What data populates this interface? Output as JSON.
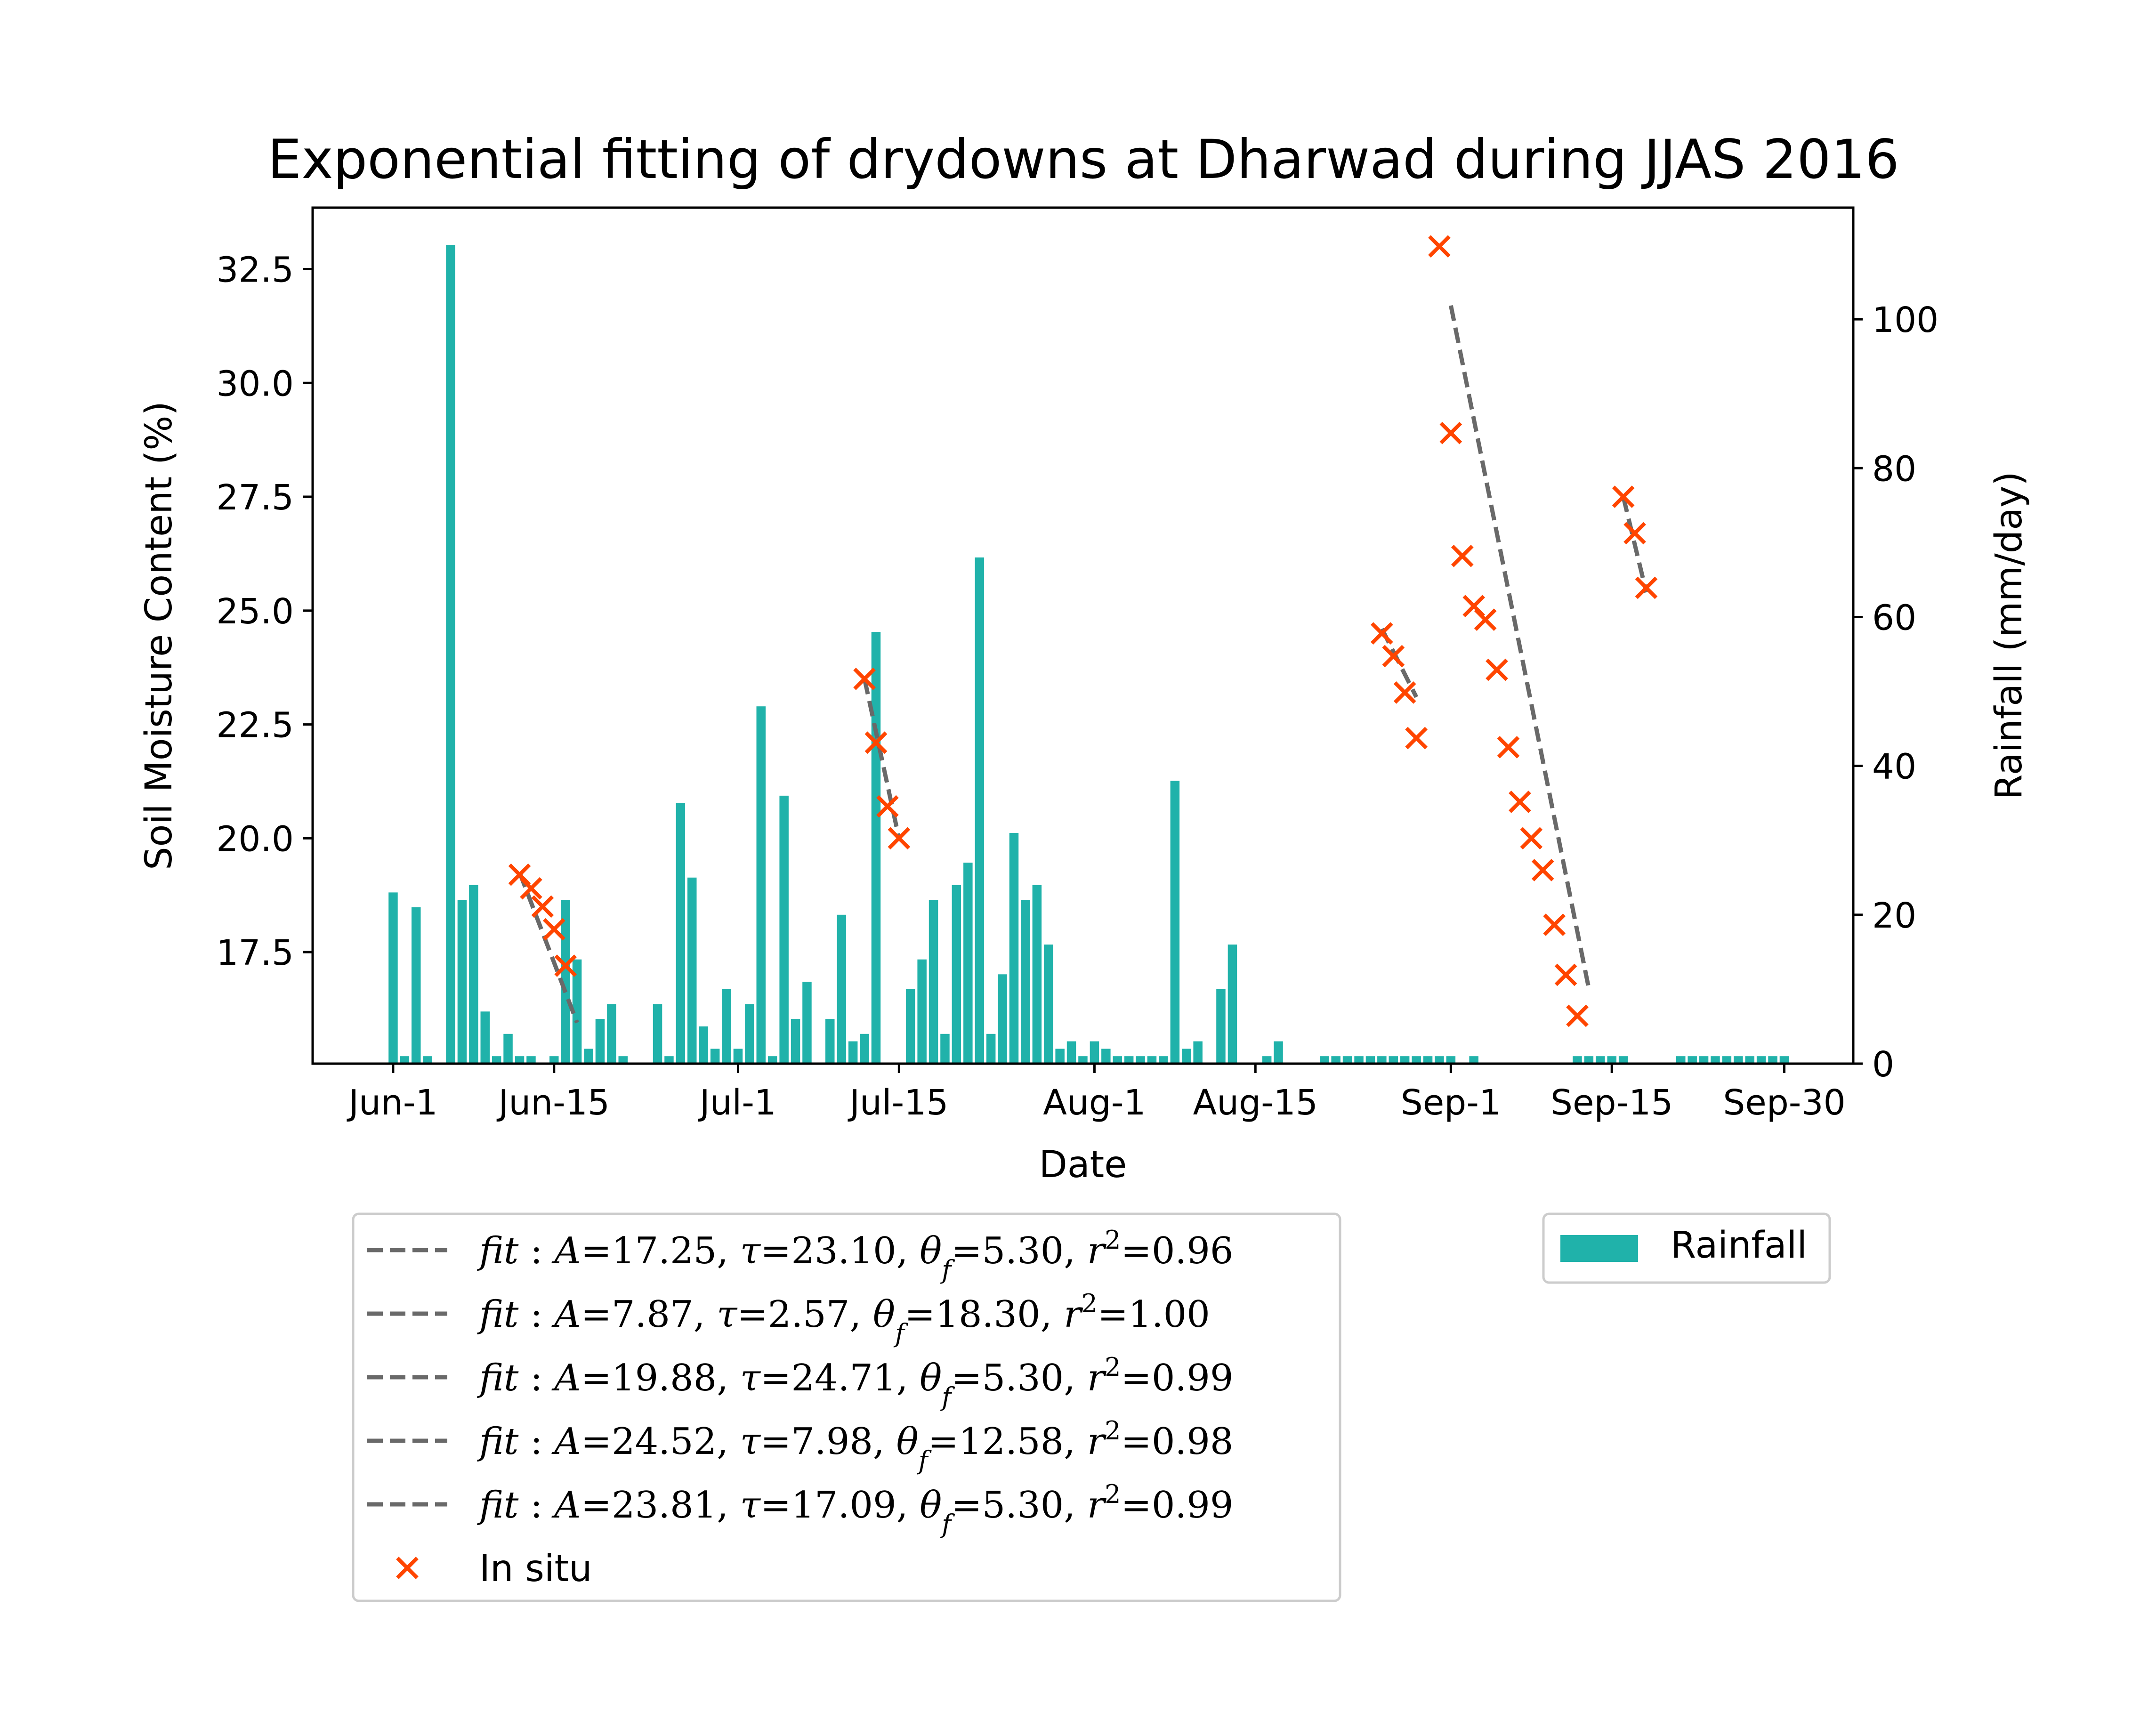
{
  "chart_data": {
    "type": "bar+scatter+line",
    "title": "Exponential fitting of drydowns at Dharwad during JJAS 2016",
    "xlabel": "Date",
    "ylabel_left": "Soil Moisture Content (%)",
    "ylabel_right": "Rainfall (mm/day)",
    "x_domain_days": [
      -7,
      127
    ],
    "x_ticks": [
      {
        "day": 0,
        "label": "Jun-1"
      },
      {
        "day": 14,
        "label": "Jun-15"
      },
      {
        "day": 30,
        "label": "Jul-1"
      },
      {
        "day": 44,
        "label": "Jul-15"
      },
      {
        "day": 61,
        "label": "Aug-1"
      },
      {
        "day": 75,
        "label": "Aug-15"
      },
      {
        "day": 92,
        "label": "Sep-1"
      },
      {
        "day": 106,
        "label": "Sep-15"
      },
      {
        "day": 121,
        "label": "Sep-30"
      }
    ],
    "ylim_left": [
      15.05,
      33.85
    ],
    "yticks_left": [
      "17.5",
      "20.0",
      "22.5",
      "25.0",
      "27.5",
      "30.0",
      "32.5"
    ],
    "ylim_right": [
      0,
      115
    ],
    "yticks_right": [
      "0",
      "20",
      "40",
      "60",
      "80",
      "100"
    ],
    "rainfall": {
      "name": "Rainfall",
      "color": "#20b2aa",
      "days": [
        0,
        1,
        2,
        3,
        5,
        6,
        7,
        8,
        9,
        10,
        11,
        12,
        14,
        15,
        16,
        17,
        18,
        19,
        20,
        23,
        24,
        25,
        26,
        27,
        28,
        29,
        30,
        31,
        32,
        33,
        34,
        35,
        36,
        38,
        39,
        40,
        41,
        42,
        45,
        46,
        47,
        48,
        49,
        50,
        51,
        52,
        53,
        54,
        55,
        56,
        57,
        58,
        59,
        60,
        61,
        62,
        63,
        64,
        65,
        66,
        67,
        68,
        69,
        70,
        72,
        73,
        76,
        77,
        81,
        82,
        83,
        84,
        85,
        86,
        87,
        88,
        89,
        90,
        91,
        92,
        94,
        103,
        104,
        105,
        106,
        107,
        112,
        113,
        114,
        115,
        116,
        117,
        118,
        119,
        120,
        121
      ],
      "values": [
        23,
        1,
        21,
        1,
        110,
        22,
        24,
        7,
        1,
        4,
        1,
        1,
        1,
        22,
        14,
        2,
        6,
        8,
        1,
        8,
        1,
        35,
        25,
        5,
        2,
        10,
        2,
        8,
        48,
        1,
        36,
        6,
        11,
        6,
        20,
        3,
        4,
        58,
        10,
        14,
        22,
        4,
        24,
        27,
        68,
        4,
        12,
        31,
        22,
        24,
        16,
        2,
        3,
        1,
        3,
        2,
        1,
        1,
        1,
        1,
        1,
        38,
        2,
        3,
        10,
        16,
        1,
        3,
        1,
        1,
        1,
        1,
        1,
        1,
        1,
        1,
        1,
        1,
        1,
        1,
        1,
        1,
        1,
        1,
        1,
        1,
        1,
        1,
        1,
        1,
        1,
        1,
        1,
        1,
        1,
        1
      ]
    },
    "fit_segments": [
      {
        "name": "fit: A=17.25, τ=23.10, θ_f=5.30, r²=0.96",
        "x": [
          11,
          16
        ],
        "y": [
          19.25,
          15.95
        ]
      },
      {
        "name": "fit: A=7.87, τ=2.57, θ_f=18.30, r²=1.00",
        "x": [
          41,
          44
        ],
        "y": [
          23.5,
          20.0
        ]
      },
      {
        "name": "fit: A=19.88, τ=24.71, θ_f=5.30, r²=0.99",
        "x": [
          86,
          89
        ],
        "y": [
          24.6,
          23.1
        ]
      },
      {
        "name": "fit: A=24.52, τ=7.98, θ_f=12.58, r²=0.98",
        "x": [
          92,
          104
        ],
        "y": [
          31.7,
          16.7
        ]
      },
      {
        "name": "fit: A=23.81, τ=17.09, θ_f=5.30, r²=0.99",
        "x": [
          107,
          109
        ],
        "y": [
          27.5,
          25.4
        ]
      }
    ],
    "in_situ": {
      "name": "In situ",
      "color": "#ff4500",
      "days": [
        11,
        12,
        13,
        14,
        15,
        41,
        42,
        43,
        44,
        86,
        87,
        88,
        89,
        91,
        92,
        93,
        94,
        95,
        96,
        97,
        98,
        99,
        100,
        101,
        102,
        103,
        107,
        108,
        109
      ],
      "values": [
        19.2,
        18.9,
        18.5,
        18.0,
        17.2,
        23.5,
        22.1,
        20.7,
        20.0,
        24.5,
        24.0,
        23.2,
        22.2,
        33.0,
        28.9,
        26.2,
        25.1,
        24.8,
        23.7,
        22.0,
        20.8,
        20.0,
        19.3,
        18.1,
        17.0,
        16.1,
        27.5,
        26.7,
        25.5
      ]
    },
    "legend_left": {
      "entries": [
        {
          "type": "fit",
          "parts": [
            "fit",
            "A",
            "=17.25, ",
            "τ",
            "=23.10, ",
            "θ",
            "f",
            "=5.30, ",
            "r",
            "2",
            "=0.96"
          ]
        },
        {
          "type": "fit",
          "parts": [
            "fit",
            "A",
            "=7.87, ",
            "τ",
            "=2.57, ",
            "θ",
            "f",
            "=18.30, ",
            "r",
            "2",
            "=1.00"
          ]
        },
        {
          "type": "fit",
          "parts": [
            "fit",
            "A",
            "=19.88, ",
            "τ",
            "=24.71, ",
            "θ",
            "f",
            "=5.30, ",
            "r",
            "2",
            "=0.99"
          ]
        },
        {
          "type": "fit",
          "parts": [
            "fit",
            "A",
            "=24.52, ",
            "τ",
            "=7.98, ",
            "θ",
            "f",
            "=12.58, ",
            "r",
            "2",
            "=0.98"
          ]
        },
        {
          "type": "fit",
          "parts": [
            "fit",
            "A",
            "=23.81, ",
            "τ",
            "=17.09, ",
            "θ",
            "f",
            "=5.30, ",
            "r",
            "2",
            "=0.99"
          ]
        },
        {
          "type": "marker",
          "label": "In situ"
        }
      ],
      "placement": "below-left"
    },
    "legend_right": {
      "label": "Rainfall",
      "placement": "below-right"
    },
    "colors": {
      "fit_line": "#696969",
      "axes": "#000000",
      "legend_border": "#cccccc"
    }
  }
}
